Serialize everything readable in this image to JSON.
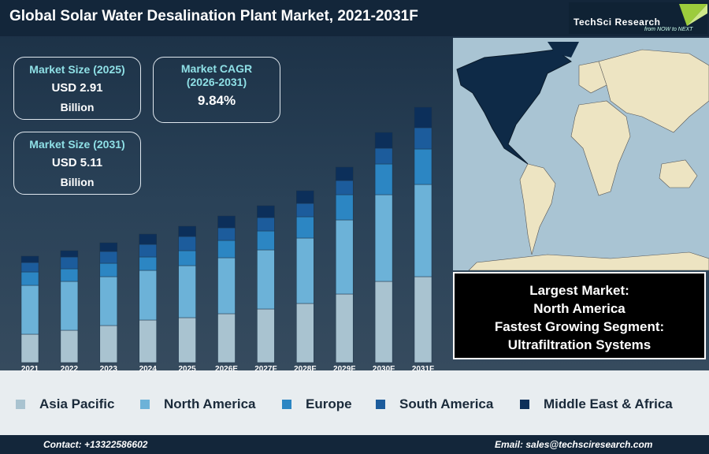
{
  "header": {
    "title": "Global Solar Water Desalination Plant Market, 2021-2031F",
    "logo": "TechSci Research",
    "tagline": "from NOW to NEXT"
  },
  "boxes": [
    {
      "label": "Market Size (2025)",
      "value": "USD 2.91",
      "unit": "Billion"
    },
    {
      "label": "Market CAGR (2026-2031)",
      "value": "9.84%"
    },
    {
      "label": "Market Size (2031)",
      "value": "USD 5.11",
      "unit": "Billion"
    }
  ],
  "highlight": {
    "line1": "Largest Market:",
    "line2": "North America",
    "line3": "Fastest Growing Segment:",
    "line4": "Ultrafiltration Systems"
  },
  "footer": {
    "contact": "Contact: +13322586602",
    "email": "Email: sales@techsciresearch.com"
  },
  "chart_data": {
    "type": "stacked-bar",
    "categories": [
      "2021",
      "2022",
      "2023",
      "2024",
      "2025",
      "2026E",
      "2027F",
      "2028F",
      "2029F",
      "2030F",
      "2031F"
    ],
    "series": [
      {
        "name": "Asia Pacific",
        "color": "#a9c3d0",
        "values": [
          36,
          41,
          47,
          54,
          57,
          62,
          68,
          75,
          87,
          103,
          109
        ]
      },
      {
        "name": "North America",
        "color": "#6cb2d8",
        "values": [
          62,
          62,
          62,
          63,
          66,
          71,
          75,
          83,
          94,
          110,
          117
        ]
      },
      {
        "name": "Europe",
        "color": "#2c86c3",
        "values": [
          17,
          16,
          17,
          17,
          19,
          22,
          24,
          27,
          32,
          39,
          45
        ]
      },
      {
        "name": "South America",
        "color": "#1c5c9c",
        "values": [
          12,
          15,
          15,
          16,
          18,
          16,
          17,
          17,
          18,
          20,
          27
        ]
      },
      {
        "name": "Middle East & Africa",
        "color": "#0c2f5a",
        "values": [
          8,
          8,
          11,
          13,
          13,
          15,
          15,
          16,
          17,
          20,
          26
        ]
      }
    ]
  }
}
